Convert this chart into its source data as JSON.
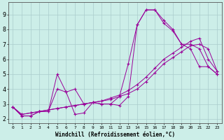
{
  "bg_color": "#cceee8",
  "line_color": "#990099",
  "grid_color": "#aacccc",
  "xlabel": "Windchill (Refroidissement éolien,°C)",
  "xlim": [
    -0.5,
    23.5
  ],
  "ylim": [
    1.7,
    9.8
  ],
  "xticks": [
    0,
    1,
    2,
    3,
    4,
    5,
    6,
    7,
    8,
    9,
    10,
    11,
    12,
    13,
    14,
    15,
    16,
    17,
    18,
    19,
    20,
    21,
    22,
    23
  ],
  "yticks": [
    2,
    3,
    4,
    5,
    6,
    7,
    8,
    9
  ],
  "series1_x": [
    0,
    1,
    2,
    3,
    4,
    5,
    6,
    7,
    8,
    9,
    10,
    11,
    12,
    13,
    14,
    15,
    16,
    17,
    18,
    19,
    20,
    21,
    22,
    23
  ],
  "series1_y": [
    2.8,
    2.2,
    2.2,
    2.5,
    2.5,
    5.0,
    3.8,
    2.3,
    2.4,
    3.1,
    3.0,
    3.0,
    2.9,
    3.5,
    8.3,
    9.3,
    9.3,
    8.6,
    8.0,
    7.0,
    7.0,
    6.7,
    5.5,
    5.0
  ],
  "series2_x": [
    0,
    1,
    2,
    3,
    4,
    5,
    6,
    7,
    8,
    9,
    10,
    11,
    12,
    13,
    14,
    15,
    16,
    17,
    18,
    19,
    20,
    21,
    22,
    23
  ],
  "series2_y": [
    2.8,
    2.2,
    2.2,
    2.5,
    2.5,
    4.0,
    3.8,
    4.0,
    3.0,
    3.1,
    3.0,
    3.0,
    3.5,
    5.7,
    8.3,
    9.3,
    9.3,
    8.4,
    7.9,
    7.0,
    6.7,
    5.5,
    5.5,
    5.0
  ],
  "series3_x": [
    0,
    1,
    2,
    3,
    4,
    5,
    6,
    7,
    8,
    9,
    10,
    11,
    12,
    13,
    14,
    15,
    16,
    17,
    18,
    19,
    20,
    21,
    22,
    23
  ],
  "series3_y": [
    2.8,
    2.3,
    2.4,
    2.5,
    2.6,
    2.7,
    2.8,
    2.9,
    3.0,
    3.1,
    3.2,
    3.3,
    3.5,
    3.7,
    4.0,
    4.5,
    5.1,
    5.7,
    6.1,
    6.5,
    6.9,
    7.0,
    6.7,
    5.2
  ],
  "series4_x": [
    0,
    1,
    2,
    3,
    4,
    5,
    6,
    7,
    8,
    9,
    10,
    11,
    12,
    13,
    14,
    15,
    16,
    17,
    18,
    19,
    20,
    21,
    22,
    23
  ],
  "series4_y": [
    2.8,
    2.3,
    2.4,
    2.5,
    2.6,
    2.7,
    2.8,
    2.9,
    3.0,
    3.1,
    3.2,
    3.4,
    3.6,
    3.9,
    4.3,
    4.8,
    5.4,
    6.0,
    6.4,
    6.8,
    7.2,
    7.4,
    6.0,
    5.2
  ]
}
